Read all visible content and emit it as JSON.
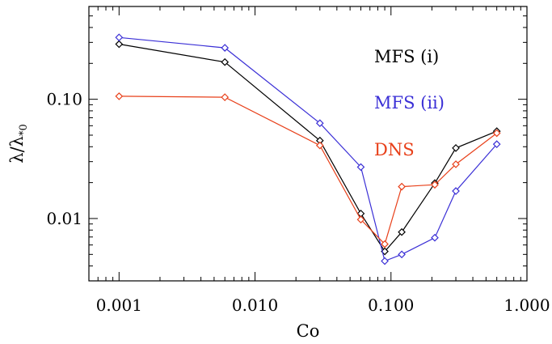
{
  "chart_data": {
    "type": "line",
    "xlabel": "Co",
    "ylabel": "λ/λ",
    "ylabel_subscript": "*0",
    "xscale": "log",
    "yscale": "log",
    "xlim": [
      0.0006,
      1.0
    ],
    "ylim": [
      0.003,
      0.6
    ],
    "x_ticks": [
      0.001,
      0.01,
      0.1,
      1.0
    ],
    "x_tick_labels": [
      "0.001",
      "0.010",
      "0.100",
      "1.000"
    ],
    "y_ticks": [
      0.01,
      0.1
    ],
    "y_tick_labels": [
      "0.01",
      "0.10"
    ],
    "grid": false,
    "legend_position": "top-right",
    "marker": "diamond",
    "series": [
      {
        "name": "MFS (i)",
        "color": "#000000",
        "x": [
          0.001,
          0.006,
          0.03,
          0.06,
          0.09,
          0.12,
          0.21,
          0.3,
          0.6
        ],
        "y": [
          0.29,
          0.205,
          0.045,
          0.011,
          0.0053,
          0.0077,
          0.0198,
          0.039,
          0.054
        ]
      },
      {
        "name": "MFS (ii)",
        "color": "#3a2fd6",
        "x": [
          0.001,
          0.006,
          0.03,
          0.06,
          0.09,
          0.12,
          0.21,
          0.3,
          0.6
        ],
        "y": [
          0.33,
          0.27,
          0.063,
          0.027,
          0.0044,
          0.005,
          0.0069,
          0.017,
          0.042
        ]
      },
      {
        "name": "DNS",
        "color": "#e8401a",
        "x": [
          0.001,
          0.006,
          0.03,
          0.06,
          0.09,
          0.12,
          0.21,
          0.3,
          0.6
        ],
        "y": [
          0.106,
          0.104,
          0.041,
          0.0098,
          0.0061,
          0.0185,
          0.0192,
          0.0285,
          0.052
        ]
      }
    ]
  }
}
